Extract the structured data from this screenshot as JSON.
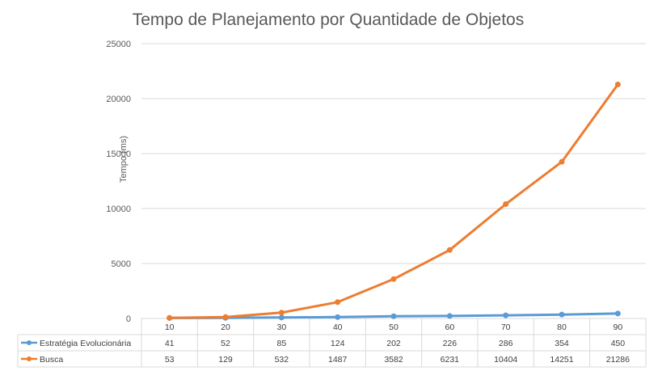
{
  "chart_data": {
    "type": "line",
    "title": "Tempo de Planejamento por Quantidade de Objetos",
    "xlabel": "",
    "ylabel": "Tempo (ms)",
    "categories": [
      "10",
      "20",
      "30",
      "40",
      "50",
      "60",
      "70",
      "80",
      "90"
    ],
    "ylim": [
      0,
      25000
    ],
    "yticks": [
      "0",
      "5000",
      "10000",
      "15000",
      "20000",
      "25000"
    ],
    "grid": true,
    "legend": "data-table",
    "series": [
      {
        "name": "Estratégia Evolucionária",
        "color": "#5b9bd5",
        "values": [
          41,
          52,
          85,
          124,
          202,
          226,
          286,
          354,
          450
        ]
      },
      {
        "name": "Busca",
        "color": "#ed7d31",
        "values": [
          53,
          129,
          532,
          1487,
          3582,
          6231,
          10404,
          14251,
          21286
        ]
      }
    ]
  }
}
